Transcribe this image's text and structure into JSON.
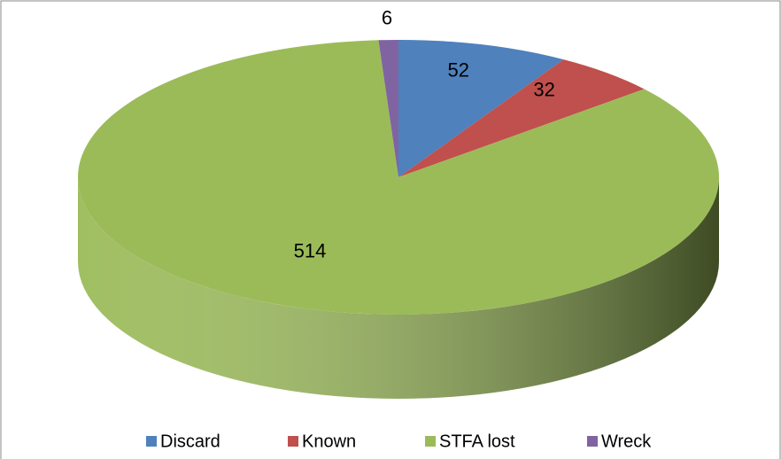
{
  "chart_data": {
    "type": "pie3d",
    "categories": [
      "Discard",
      "Known",
      "STFA lost",
      "Wreck"
    ],
    "values": [
      52,
      32,
      514,
      6
    ],
    "colors": [
      "#4f81bd",
      "#c0504d",
      "#9bbb59",
      "#8064a2"
    ],
    "legend": "bottom"
  }
}
